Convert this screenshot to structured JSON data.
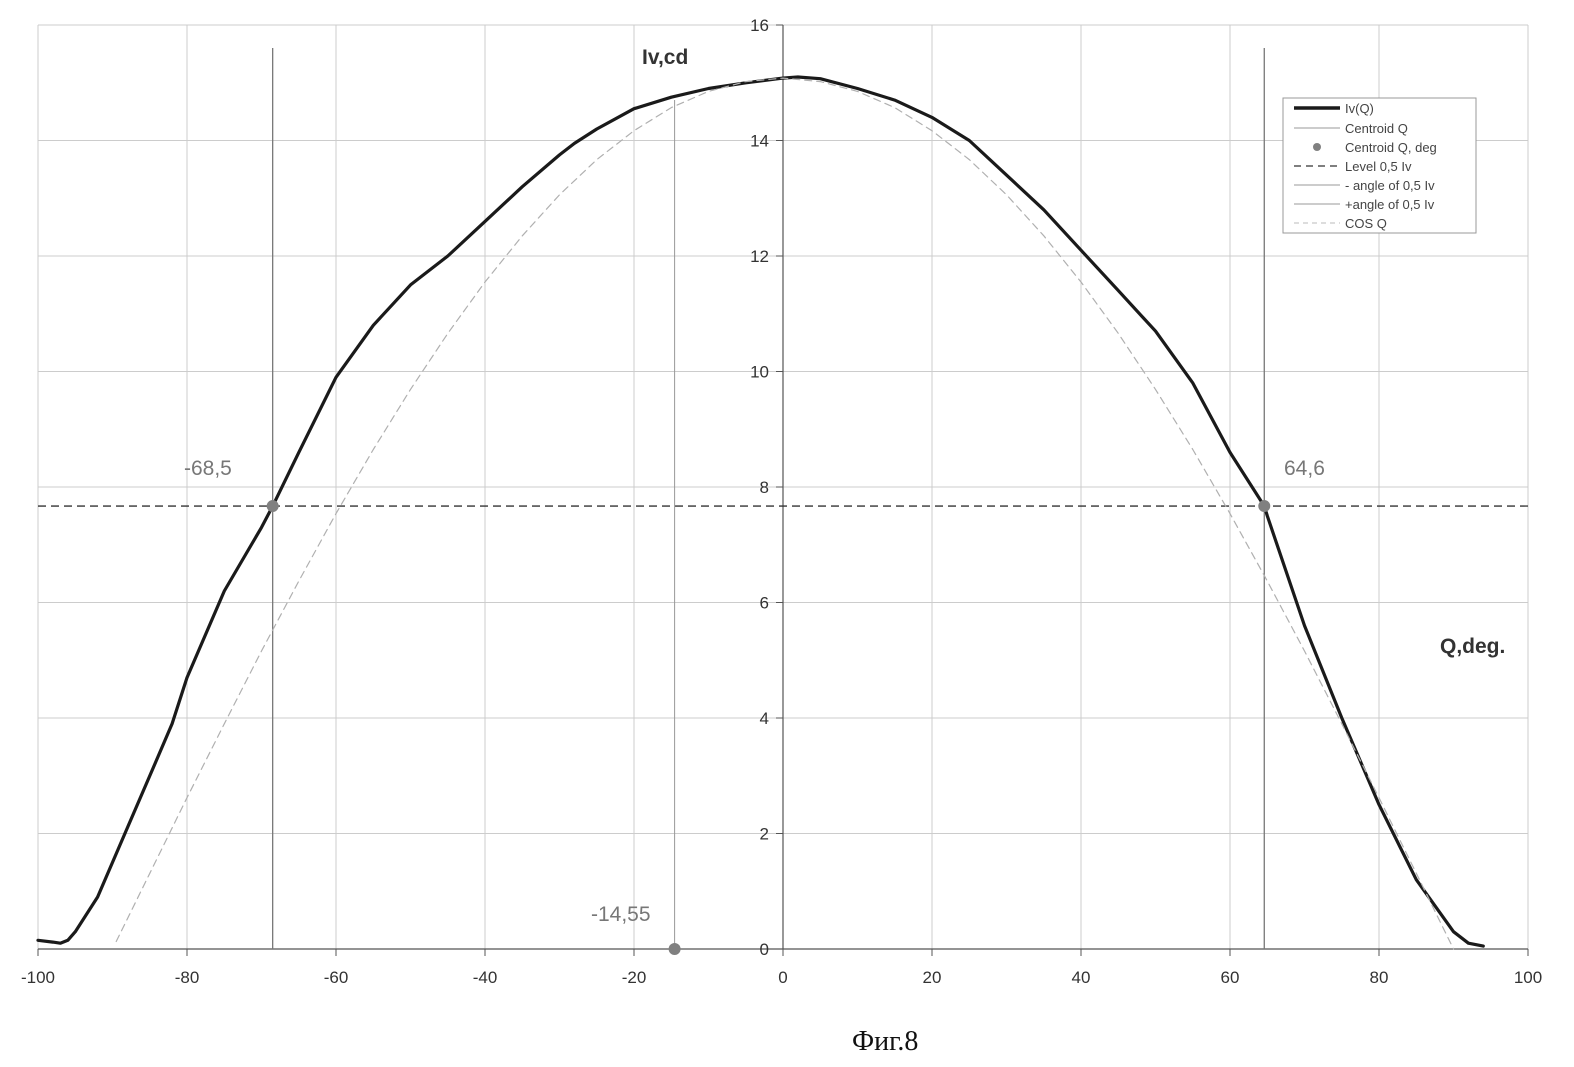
{
  "chart_data": {
    "type": "line",
    "ylabel": "Iv,cd",
    "xlabel": "Q,deg.",
    "xlim": [
      -100,
      100
    ],
    "ylim": [
      0,
      16
    ],
    "x_ticks": [
      -100,
      -80,
      -60,
      -40,
      -20,
      0,
      20,
      40,
      60,
      80,
      100
    ],
    "y_ticks": [
      0,
      2,
      4,
      6,
      8,
      10,
      12,
      14,
      16
    ],
    "grid": true,
    "legend_position": "top-right",
    "legend": [
      "Iv(Q)",
      "Centroid Q",
      "Centroid Q, deg",
      "Level 0,5 Iv",
      "- angle of 0,5 Iv",
      "+angle of 0,5 Iv",
      "COS Q"
    ],
    "series": [
      {
        "name": "Iv(Q)",
        "style": "solid-thick",
        "color": "#1a1a1a",
        "x": [
          -100,
          -98,
          -97,
          -96,
          -95,
          -92,
          -90,
          -88,
          -85,
          -82,
          -80,
          -75,
          -70,
          -68.5,
          -65,
          -60,
          -55,
          -50,
          -45,
          -40,
          -35,
          -30,
          -28,
          -25,
          -20,
          -15,
          -10,
          -5,
          0,
          2,
          5,
          10,
          15,
          20,
          25,
          30,
          35,
          40,
          45,
          50,
          55,
          60,
          64.6,
          65,
          70,
          75,
          80,
          85,
          90,
          92,
          94
        ],
        "y": [
          0.15,
          0.12,
          0.1,
          0.15,
          0.3,
          0.9,
          1.5,
          2.1,
          3.0,
          3.9,
          4.7,
          6.2,
          7.3,
          7.67,
          8.6,
          9.9,
          10.8,
          11.5,
          12.0,
          12.6,
          13.2,
          13.75,
          13.95,
          14.2,
          14.55,
          14.75,
          14.9,
          15.0,
          15.08,
          15.1,
          15.07,
          14.9,
          14.7,
          14.4,
          14.0,
          13.4,
          12.8,
          12.1,
          11.4,
          10.7,
          9.8,
          8.6,
          7.67,
          7.5,
          5.6,
          4.0,
          2.5,
          1.2,
          0.3,
          0.1,
          0.05
        ]
      },
      {
        "name": "COS Q",
        "style": "dashed-light",
        "color": "#b0b0b0",
        "x": [
          -89.5,
          -85,
          -80,
          -75,
          -70,
          -65,
          -60,
          -55,
          -50,
          -45,
          -40,
          -35,
          -30,
          -25,
          -20,
          -15,
          -10,
          -5,
          0,
          5,
          10,
          15,
          20,
          25,
          30,
          35,
          40,
          45,
          50,
          55,
          60,
          65,
          70,
          75,
          80,
          85,
          90
        ],
        "y": [
          0.13,
          1.31,
          2.62,
          3.9,
          5.16,
          6.37,
          7.54,
          8.65,
          9.69,
          10.66,
          11.55,
          12.35,
          13.06,
          13.67,
          14.17,
          14.57,
          14.85,
          15.02,
          15.08,
          15.02,
          14.85,
          14.57,
          14.17,
          13.67,
          13.06,
          12.35,
          11.55,
          10.66,
          9.69,
          8.65,
          7.54,
          6.37,
          5.16,
          3.9,
          2.62,
          1.31,
          0.0
        ]
      }
    ],
    "level_half": {
      "name": "Level 0,5 Iv",
      "y": 7.67
    },
    "minus_angle": {
      "name": "- angle of 0,5 Iv",
      "x": -68.5,
      "label": "-68,5"
    },
    "plus_angle": {
      "name": "+angle of 0,5 Iv",
      "x": 64.6,
      "label": "64,6"
    },
    "centroid": {
      "name": "Centroid Q",
      "x": -14.55,
      "label": "-14,55"
    }
  },
  "caption": "Фиг.8",
  "colors": {
    "grid": "#cccccc",
    "axis": "#555555",
    "curve": "#1a1a1a",
    "cos": "#b0b0b0",
    "marker": "#808080",
    "annotation": "#777777"
  }
}
